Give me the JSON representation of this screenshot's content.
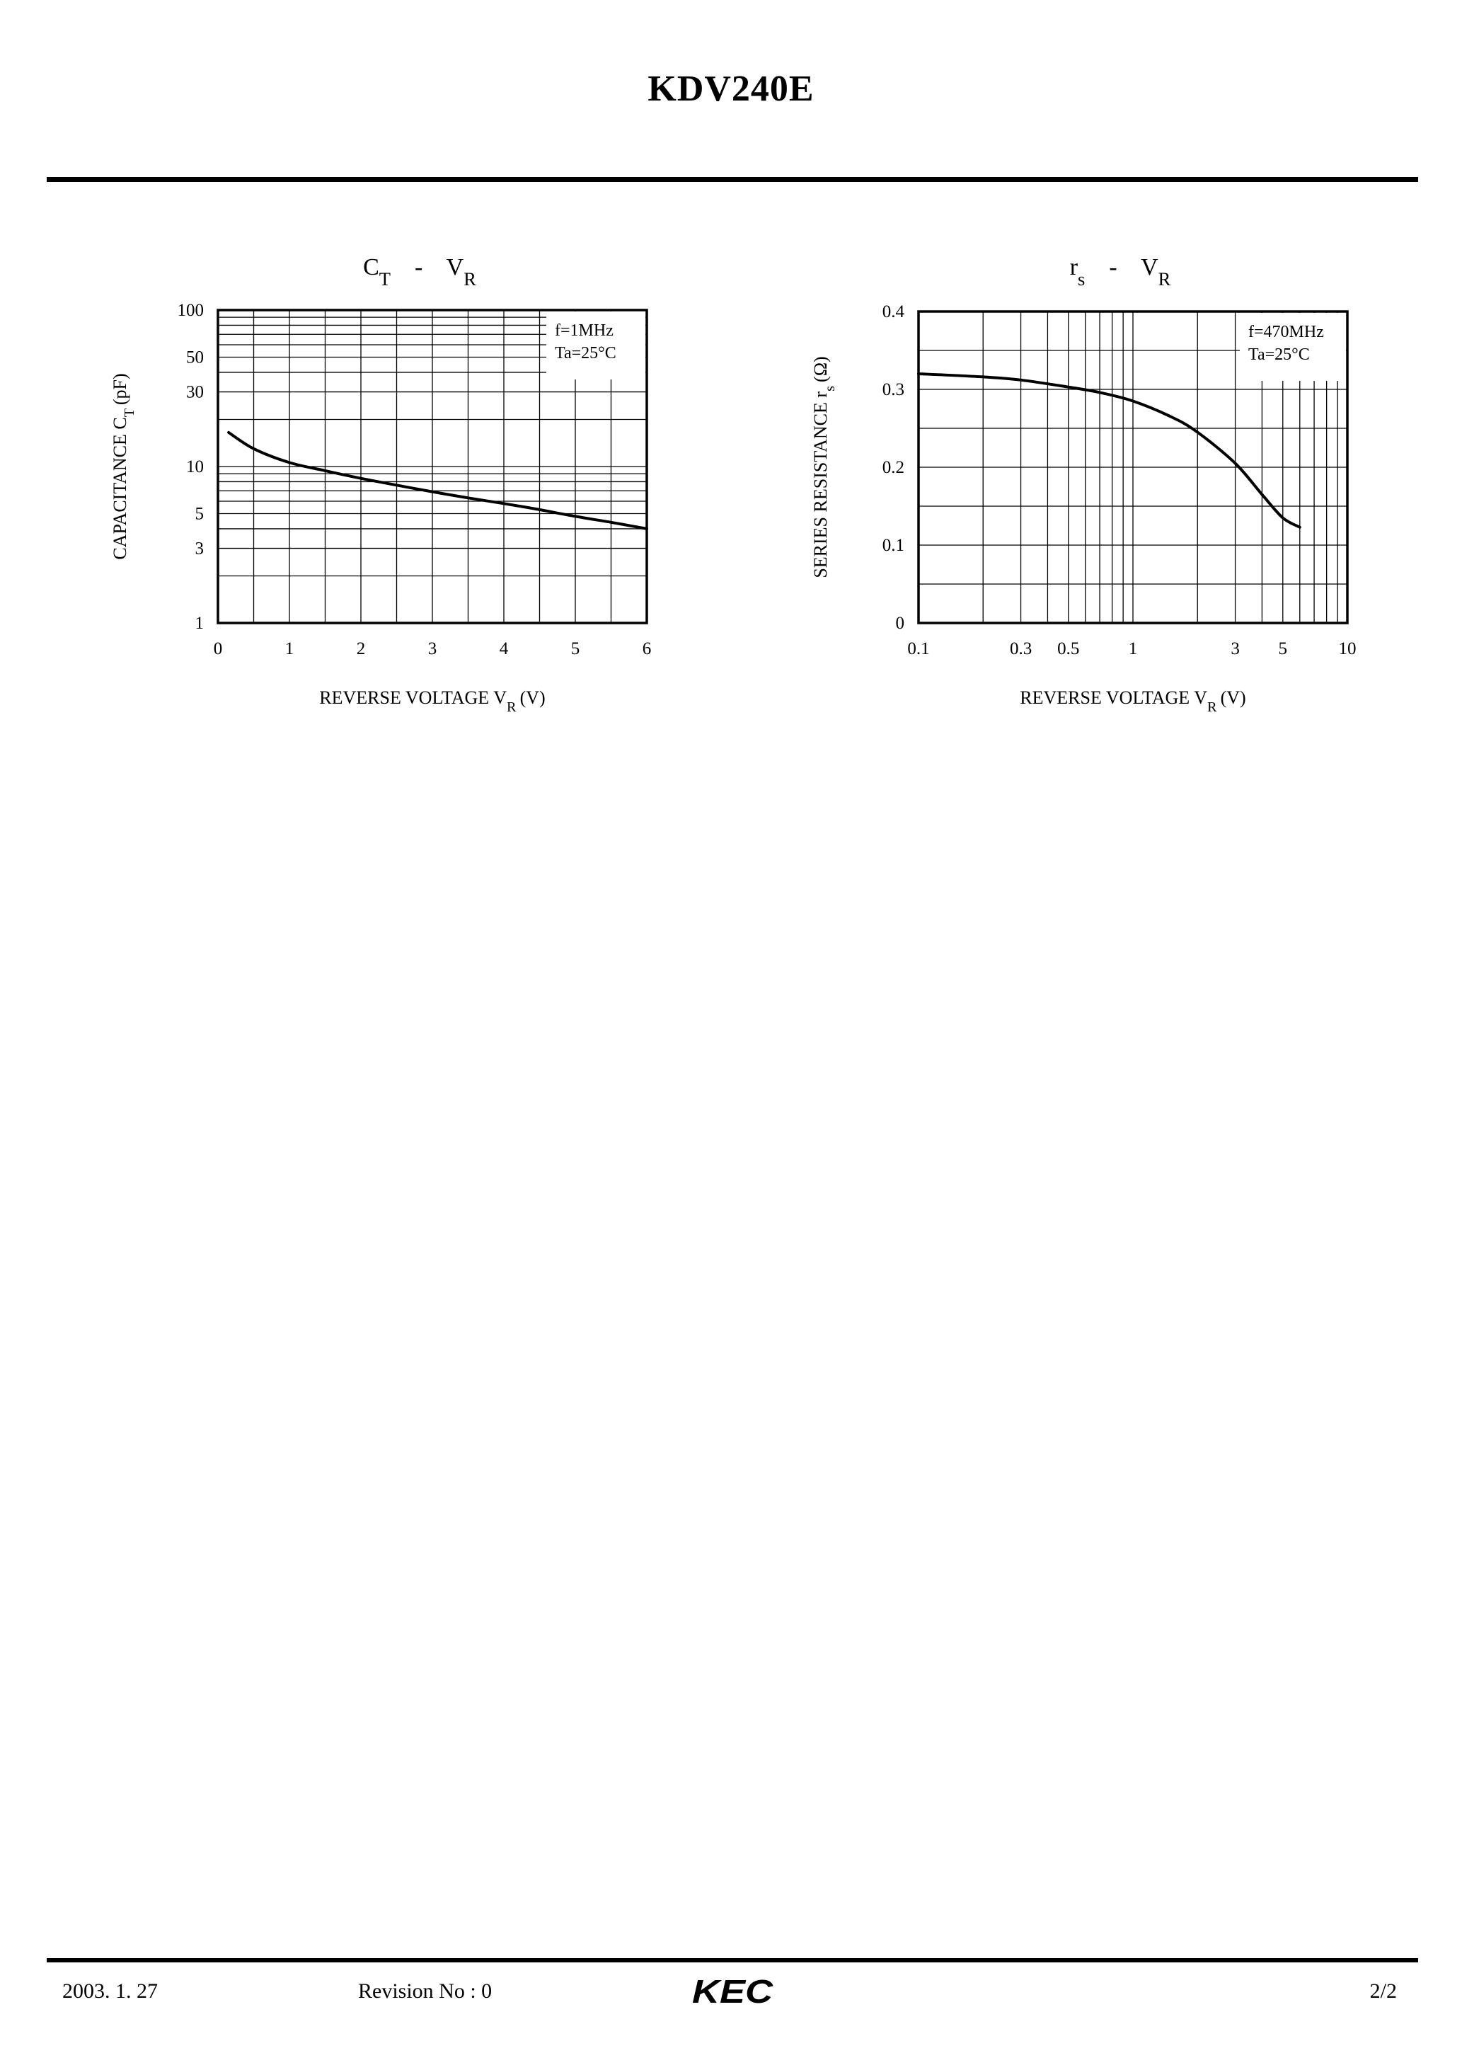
{
  "document": {
    "title": "KDV240E"
  },
  "footer": {
    "date": "2003. 1. 27",
    "revision": "Revision No : 0",
    "logo_text": "KEC",
    "page": "2/2"
  },
  "chart_data": [
    {
      "type": "line",
      "title": "CT - VR",
      "xlabel": "REVERSE VOLTAGE VR (V)",
      "ylabel": "CAPACITANCE CT (pF)",
      "x_scale": "linear",
      "y_scale": "log",
      "xlim": [
        0,
        6
      ],
      "ylim": [
        1,
        100
      ],
      "x_ticks": [
        "0",
        "1",
        "2",
        "3",
        "4",
        "5",
        "6"
      ],
      "y_ticks": [
        "1",
        "3",
        "5",
        "10",
        "30",
        "50",
        "100"
      ],
      "grid": true,
      "annotations": [
        "f=1MHz",
        "Ta=25°C"
      ],
      "annotation_position": "top-right",
      "series": [
        {
          "x": [
            0.15,
            0.5,
            1.0,
            1.5,
            2.0,
            2.5,
            3.0,
            3.5,
            4.0,
            4.5,
            5.0,
            5.5,
            6.0
          ],
          "y": [
            16.5,
            13.0,
            10.6,
            9.4,
            8.4,
            7.6,
            6.9,
            6.3,
            5.8,
            5.3,
            4.8,
            4.4,
            4.0
          ]
        }
      ]
    },
    {
      "type": "line",
      "title": "rs - VR",
      "xlabel": "REVERSE VOLTAGE VR (V)",
      "ylabel": "SERIES RESISTANCE rs (Ω)",
      "x_scale": "log",
      "y_scale": "linear",
      "xlim": [
        0.1,
        10
      ],
      "ylim": [
        0,
        0.4
      ],
      "x_ticks": [
        "0.1",
        "0.3",
        "0.5",
        "1",
        "3",
        "5",
        "10"
      ],
      "y_ticks": [
        "0",
        "0.1",
        "0.2",
        "0.3",
        "0.4"
      ],
      "grid": true,
      "annotations": [
        "f=470MHz",
        "Ta=25°C"
      ],
      "annotation_position": "top-right",
      "series": [
        {
          "x": [
            0.1,
            0.2,
            0.3,
            0.5,
            0.7,
            1.0,
            1.5,
            2.0,
            3.0,
            4.0,
            5.0,
            6.0
          ],
          "y": [
            0.32,
            0.316,
            0.312,
            0.303,
            0.296,
            0.285,
            0.265,
            0.245,
            0.205,
            0.165,
            0.135,
            0.123
          ]
        }
      ]
    }
  ]
}
